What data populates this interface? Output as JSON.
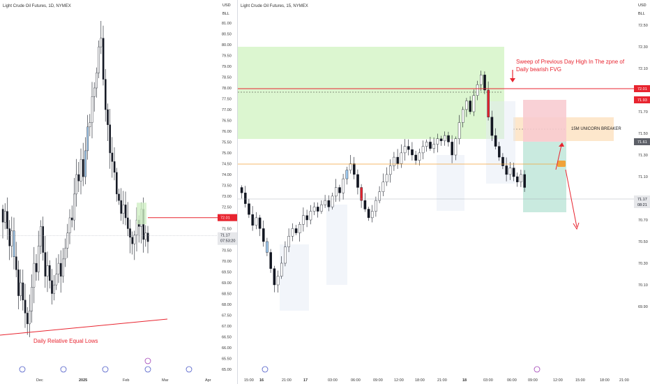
{
  "left_chart": {
    "title": "Light Crude Oil Futures, 1D, NYMEX",
    "currency": "USD",
    "unit": "BLL",
    "y_ticks": [
      "81.00",
      "80.50",
      "80.00",
      "79.50",
      "79.00",
      "78.50",
      "78.00",
      "77.50",
      "77.00",
      "76.50",
      "76.00",
      "75.50",
      "75.00",
      "74.50",
      "74.00",
      "73.50",
      "73.00",
      "72.50",
      "72.00",
      "71.50",
      "71.00",
      "70.50",
      "70.00",
      "69.50",
      "69.00",
      "68.50",
      "68.00",
      "67.50",
      "67.00",
      "66.50",
      "66.00",
      "65.50",
      "65.00"
    ],
    "x_ticks": [
      "Dec",
      "2025",
      "Feb",
      "Mar",
      "Apr"
    ],
    "price_label": "72.01",
    "current_price": "71.17",
    "countdown": "07:53:20",
    "annotation": "Daily Relative Equal Lows",
    "colors": {
      "line": "#e8242f",
      "bull": "#ffffff",
      "bear": "#131722",
      "highlight": "#9ec9ee"
    }
  },
  "right_chart": {
    "title": "Light Crude Oil Futures, 15, NYMEX",
    "currency": "USD",
    "unit": "BLL",
    "y_ticks": [
      "72.50",
      "72.30",
      "72.10",
      "71.90",
      "71.70",
      "71.50",
      "71.30",
      "71.10",
      "70.90",
      "70.70",
      "70.50",
      "70.30",
      "70.10",
      "69.90"
    ],
    "x_ticks": [
      "15:00",
      "16",
      "21:00",
      "17",
      "03:00",
      "06:00",
      "09:00",
      "12:00",
      "18:00",
      "21:00",
      "18",
      "03:00",
      "06:00",
      "09:00",
      "12:00",
      "15:00",
      "18:00",
      "21:00"
    ],
    "price_labels": {
      "top": "72.01",
      "second": "71.93",
      "third": "71.61",
      "current": "71.17",
      "countdown": "08:21"
    },
    "annotation_top_line1": "Sweep of Previous Day High In The zpne of",
    "annotation_top_line2": "Daily  bearish FVG",
    "unicorn_label": "15M UNICORN BREAKER",
    "colors": {
      "fvg_zone": "#d6f5c8",
      "sell_zone": "#f8c9cf",
      "tp_zone": "#bfe6d9",
      "unicorn": "#fde4c6",
      "line": "#e8242f",
      "arrow": "#e8242f",
      "entry": "#f0a33a"
    }
  }
}
